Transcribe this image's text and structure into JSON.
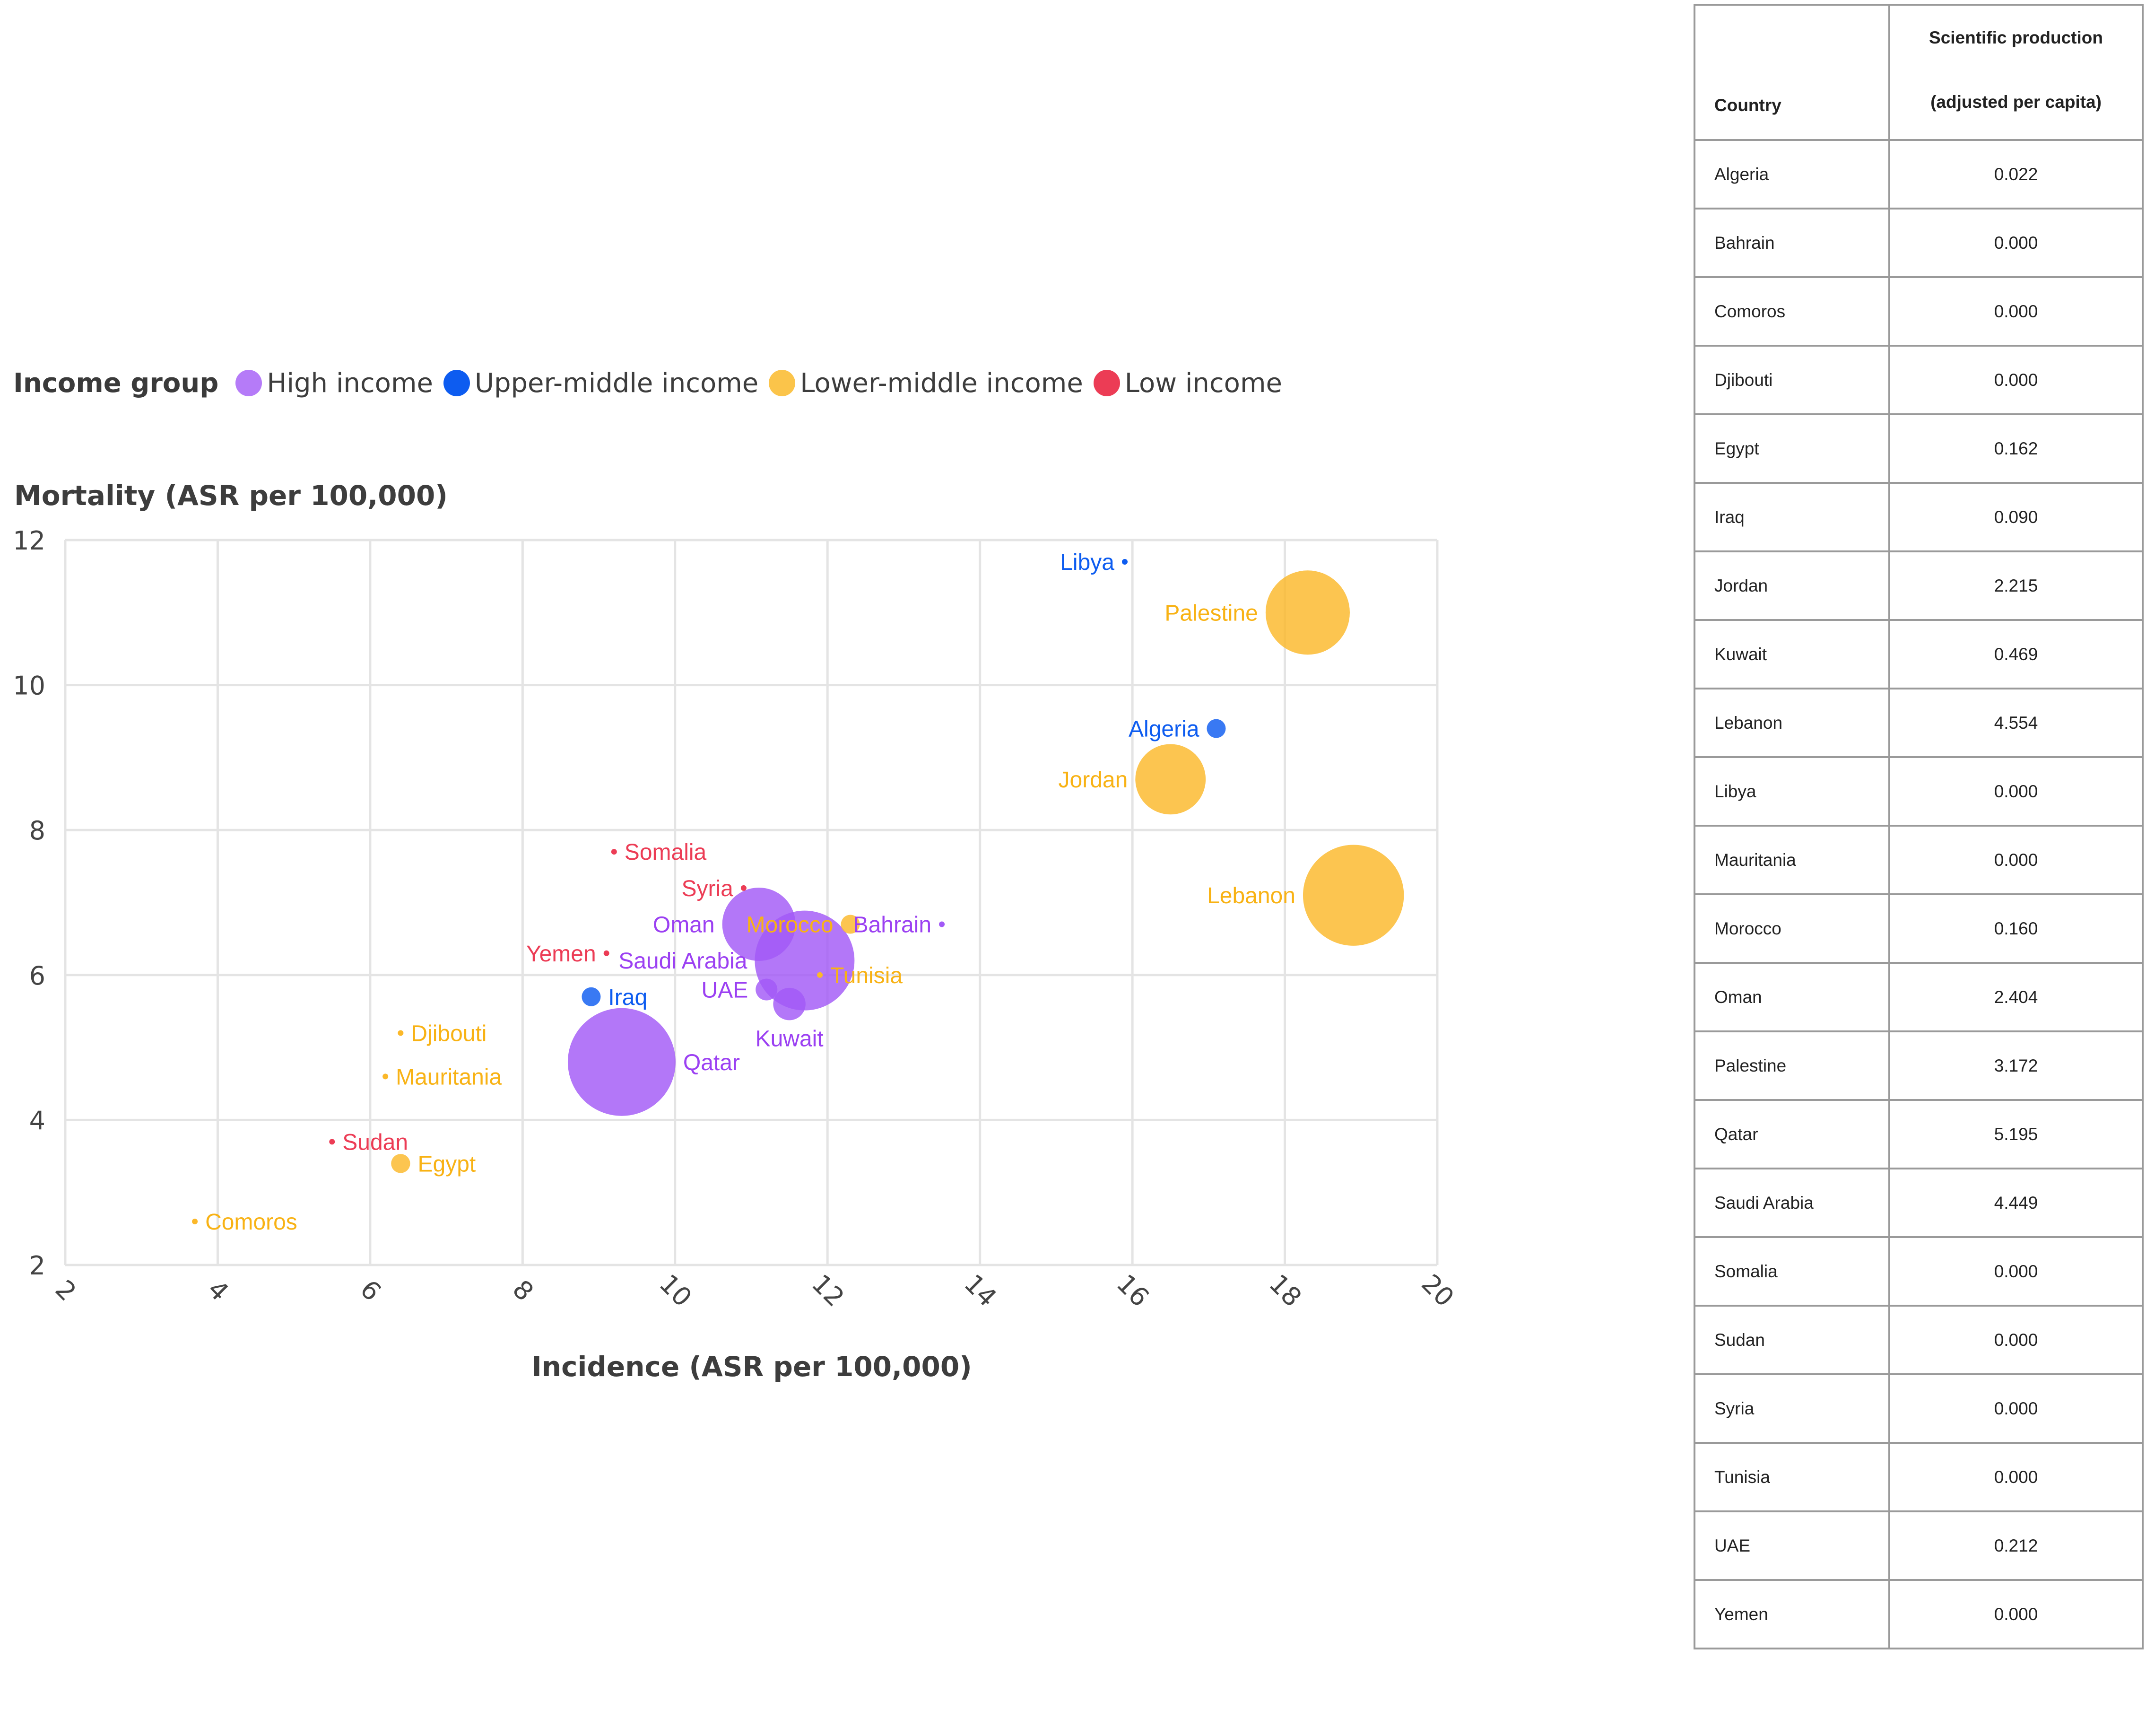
{
  "legend": {
    "title": "Income group",
    "items": [
      {
        "key": "high",
        "label": "High income",
        "color": "#a259f7"
      },
      {
        "key": "upper",
        "label": "Upper-middle income",
        "color": "#0d5cf0"
      },
      {
        "key": "lower",
        "label": "Lower-middle income",
        "color": "#fbb829"
      },
      {
        "key": "low",
        "label": "Low income",
        "color": "#ec3c55"
      }
    ]
  },
  "chart_data": {
    "type": "scatter",
    "title": "",
    "ylabel": "Mortality (ASR per 100,000)",
    "xlabel": "Incidence (ASR per 100,000)",
    "xlim": [
      2,
      20
    ],
    "ylim": [
      2,
      12
    ],
    "xticks": [
      "2",
      "4",
      "6",
      "8",
      "10",
      "12",
      "14",
      "16",
      "18",
      "20"
    ],
    "yticks": [
      "2",
      "4",
      "6",
      "8",
      "10",
      "12"
    ],
    "grid": true,
    "legend_position": "top-left",
    "size_variable": "Scientific production (adjusted per capita)",
    "points": [
      {
        "country": "Libya",
        "x": 15.9,
        "y": 11.7,
        "group": "upper",
        "size": 0.0
      },
      {
        "country": "Palestine",
        "x": 18.3,
        "y": 11.0,
        "group": "lower",
        "size": 3.172
      },
      {
        "country": "Algeria",
        "x": 17.1,
        "y": 9.4,
        "group": "upper",
        "size": 0.022
      },
      {
        "country": "Jordan",
        "x": 16.5,
        "y": 8.7,
        "group": "lower",
        "size": 2.215
      },
      {
        "country": "Lebanon",
        "x": 18.9,
        "y": 7.1,
        "group": "lower",
        "size": 4.554
      },
      {
        "country": "Somalia",
        "x": 9.2,
        "y": 7.7,
        "group": "low",
        "size": 0.0
      },
      {
        "country": "Syria",
        "x": 10.9,
        "y": 7.2,
        "group": "low",
        "size": 0.0
      },
      {
        "country": "Oman",
        "x": 11.1,
        "y": 6.7,
        "group": "high",
        "size": 2.404
      },
      {
        "country": "Morocco",
        "x": 12.3,
        "y": 6.7,
        "group": "lower",
        "size": 0.16
      },
      {
        "country": "Bahrain",
        "x": 13.5,
        "y": 6.7,
        "group": "high",
        "size": 0.0
      },
      {
        "country": "Yemen",
        "x": 9.1,
        "y": 6.3,
        "group": "low",
        "size": 0.0
      },
      {
        "country": "Saudi Arabia",
        "x": 11.7,
        "y": 6.2,
        "group": "high",
        "size": 4.449
      },
      {
        "country": "Tunisia",
        "x": 11.9,
        "y": 6.0,
        "group": "lower",
        "size": 0.0
      },
      {
        "country": "UAE",
        "x": 11.2,
        "y": 5.8,
        "group": "high",
        "size": 0.212
      },
      {
        "country": "Kuwait",
        "x": 11.5,
        "y": 5.6,
        "group": "high",
        "size": 0.469
      },
      {
        "country": "Iraq",
        "x": 8.9,
        "y": 5.7,
        "group": "upper",
        "size": 0.09
      },
      {
        "country": "Djibouti",
        "x": 6.4,
        "y": 5.2,
        "group": "lower",
        "size": 0.0
      },
      {
        "country": "Qatar",
        "x": 9.3,
        "y": 4.8,
        "group": "high",
        "size": 5.195
      },
      {
        "country": "Mauritania",
        "x": 6.2,
        "y": 4.6,
        "group": "lower",
        "size": 0.0
      },
      {
        "country": "Sudan",
        "x": 5.5,
        "y": 3.7,
        "group": "low",
        "size": 0.0
      },
      {
        "country": "Egypt",
        "x": 6.4,
        "y": 3.4,
        "group": "lower",
        "size": 0.162
      },
      {
        "country": "Comoros",
        "x": 3.7,
        "y": 2.6,
        "group": "lower",
        "size": 0.0
      }
    ]
  },
  "table": {
    "headers": {
      "country": "Country",
      "sci_line1": "Scientific production",
      "sci_line2": "(adjusted per capita)"
    },
    "rows": [
      {
        "country": "Algeria",
        "value": "0.022"
      },
      {
        "country": "Bahrain",
        "value": "0.000"
      },
      {
        "country": "Comoros",
        "value": "0.000"
      },
      {
        "country": "Djibouti",
        "value": "0.000"
      },
      {
        "country": "Egypt",
        "value": "0.162"
      },
      {
        "country": "Iraq",
        "value": "0.090"
      },
      {
        "country": "Jordan",
        "value": "2.215"
      },
      {
        "country": "Kuwait",
        "value": "0.469"
      },
      {
        "country": "Lebanon",
        "value": "4.554"
      },
      {
        "country": "Libya",
        "value": "0.000"
      },
      {
        "country": "Mauritania",
        "value": "0.000"
      },
      {
        "country": "Morocco",
        "value": "0.160"
      },
      {
        "country": "Oman",
        "value": "2.404"
      },
      {
        "country": "Palestine",
        "value": "3.172"
      },
      {
        "country": "Qatar",
        "value": "5.195"
      },
      {
        "country": "Saudi Arabia",
        "value": "4.449"
      },
      {
        "country": "Somalia",
        "value": "0.000"
      },
      {
        "country": "Sudan",
        "value": "0.000"
      },
      {
        "country": "Syria",
        "value": "0.000"
      },
      {
        "country": "Tunisia",
        "value": "0.000"
      },
      {
        "country": "UAE",
        "value": "0.212"
      },
      {
        "country": "Yemen",
        "value": "0.000"
      }
    ]
  }
}
